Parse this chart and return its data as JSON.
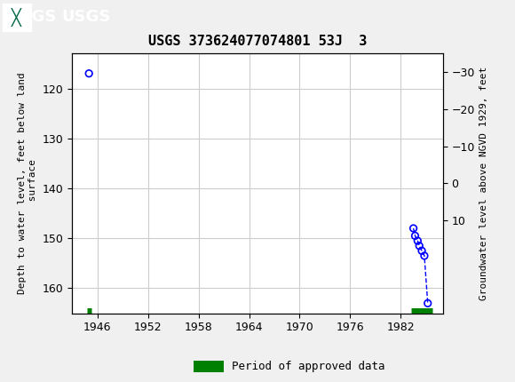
{
  "title": "USGS 373624077074801 53J  3",
  "header_bg_color": "#006644",
  "header_text_color": "#ffffff",
  "plot_bg_color": "#ffffff",
  "grid_color": "#cccccc",
  "ylabel_left": "Depth to water level, feet below land\n surface",
  "ylabel_right": "Groundwater level above NGVD 1929, feet",
  "xlim": [
    1943,
    1987
  ],
  "ylim_left": [
    165,
    113
  ],
  "ylim_right": [
    35,
    -35
  ],
  "xticks": [
    1946,
    1952,
    1958,
    1964,
    1970,
    1976,
    1982
  ],
  "yticks_left": [
    120,
    130,
    140,
    150,
    160
  ],
  "yticks_right": [
    10,
    0,
    -10,
    -20,
    -30
  ],
  "scatter_x": [
    1945.0,
    1983.5,
    1983.7,
    1984.0,
    1984.2,
    1984.5,
    1984.8,
    1985.2
  ],
  "scatter_y": [
    117.0,
    148.0,
    149.5,
    150.5,
    151.5,
    152.5,
    153.5,
    163.0
  ],
  "scatter_color": "blue",
  "line_x": [
    1983.5,
    1983.7,
    1984.0,
    1984.2,
    1984.5,
    1984.8,
    1985.2
  ],
  "line_y": [
    148.0,
    149.5,
    150.5,
    151.5,
    152.5,
    153.5,
    163.0
  ],
  "line_color": "blue",
  "line_style": "--",
  "approved_segments": [
    {
      "x_start": 1944.8,
      "x_end": 1945.3
    },
    {
      "x_start": 1983.2,
      "x_end": 1985.8
    }
  ],
  "approved_color": "#008000",
  "approved_y": 164.5,
  "legend_label": "Period of approved data",
  "font_family": "monospace"
}
